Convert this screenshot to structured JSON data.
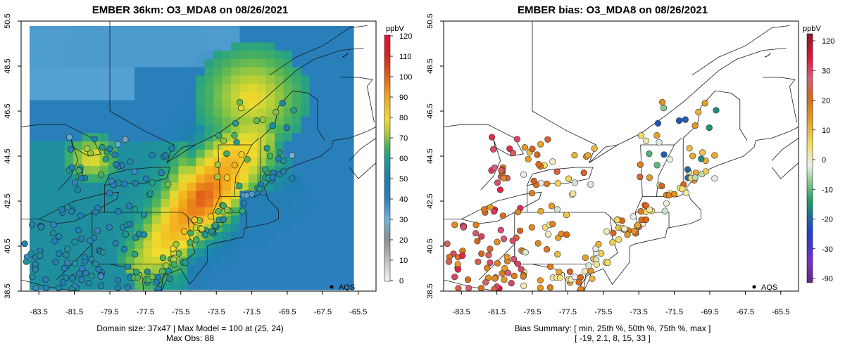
{
  "left_panel": {
    "title": "EMBER 36km: O3_MDA8 on 08/26/2021",
    "colorbar_unit": "ppbV",
    "colorbar_ticks": [
      "120",
      "110",
      "100",
      "90",
      "80",
      "70",
      "60",
      "50",
      "40",
      "30",
      "20",
      "10",
      "0"
    ],
    "footer_line1": "Domain size: 37x47 | Max Model = 100 at (25, 24)",
    "footer_line2": "Max Obs: 88",
    "legend_label": "AQS"
  },
  "right_panel": {
    "title": "EMBER bias: O3_MDA8 on 08/26/2021",
    "colorbar_unit": "ppbV",
    "colorbar_ticks": [
      "120",
      "30",
      "20",
      "10",
      "0",
      "-10",
      "-20",
      "-30",
      "-90"
    ],
    "footer_line1": "Bias Summary: [ min, 25th %, 50th %, 75th %, max ]",
    "footer_line2": "[ -19,  2.1,  8,  15,  33 ]",
    "legend_label": "AQS"
  },
  "axes": {
    "lon_ticks": [
      "-83.5",
      "-81.5",
      "-79.5",
      "-77.5",
      "-75.5",
      "-73.5",
      "-71.5",
      "-69.5",
      "-67.5",
      "-65.5"
    ],
    "lat_ticks": [
      "50.5",
      "48.5",
      "46.5",
      "44.5",
      "42.5",
      "40.5",
      "38.5"
    ],
    "lon_range": [
      -84.5,
      -64.5
    ],
    "lat_range": [
      38.5,
      50.5
    ]
  },
  "colors": {
    "o3_scale": [
      "#f5f5f5",
      "#8c8c8c",
      "#4aa6d4",
      "#2b7fbd",
      "#1f9e8e",
      "#6cc04a",
      "#f0dc2e",
      "#f2a41c",
      "#e05a1a",
      "#d81e1e",
      "#e8143a"
    ],
    "bias_scale": [
      "#6a2c91",
      "#7a30c8",
      "#1e3fd8",
      "#1f9e66",
      "#9cd49a",
      "#efefef",
      "#f3e067",
      "#e8a028",
      "#d6641a",
      "#e8143a",
      "#8a1a2a"
    ]
  },
  "chart_data": [
    {
      "type": "heatmap",
      "title": "EMBER 36km: O3_MDA8 on 08/26/2021",
      "variable": "O3_MDA8",
      "unit": "ppbV",
      "x_range": [
        -84.5,
        -64.5
      ],
      "y_range": [
        38.5,
        50.5
      ],
      "model_domain_size": "37x47",
      "max_model": 100,
      "max_model_cell": [
        25,
        24
      ],
      "max_obs": 88,
      "color_range": [
        0,
        120
      ],
      "observation_network": "AQS"
    },
    {
      "type": "scatter",
      "title": "EMBER bias: O3_MDA8 on 08/26/2021",
      "variable": "O3_MDA8 bias",
      "unit": "ppbV",
      "x_range": [
        -84.5,
        -64.5
      ],
      "y_range": [
        38.5,
        50.5
      ],
      "bias_summary": {
        "min": -19,
        "p25": 2.1,
        "p50": 8,
        "p75": 15,
        "max": 33
      },
      "color_range": [
        -90,
        120
      ],
      "observation_network": "AQS"
    }
  ]
}
